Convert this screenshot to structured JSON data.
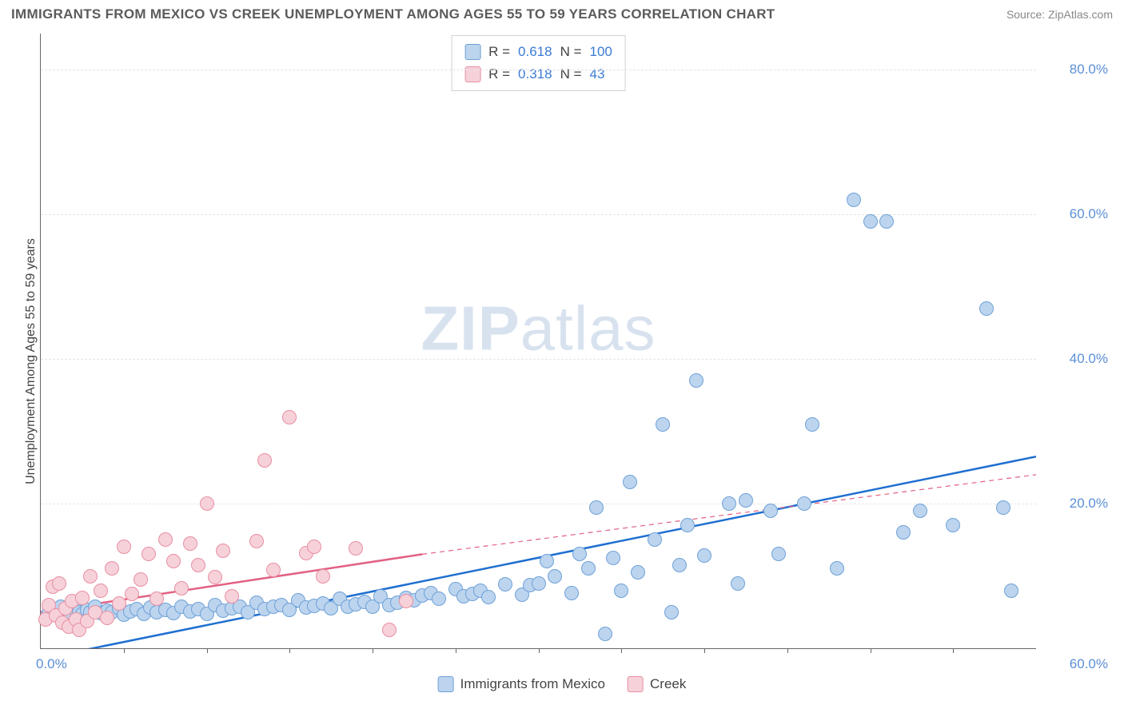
{
  "title": "IMMIGRANTS FROM MEXICO VS CREEK UNEMPLOYMENT AMONG AGES 55 TO 59 YEARS CORRELATION CHART",
  "source_label": "Source: ",
  "source_name": "ZipAtlas.com",
  "yaxis_label": "Unemployment Among Ages 55 to 59 years",
  "watermark_bold": "ZIP",
  "watermark_rest": "atlas",
  "plot": {
    "type": "scatter",
    "xlim": [
      0,
      60
    ],
    "ylim": [
      0,
      85
    ],
    "x_tick_label_min": "0.0%",
    "x_tick_label_max": "60.0%",
    "x_minor_ticks": [
      5,
      10,
      15,
      20,
      25,
      30,
      35,
      40,
      45,
      50,
      55
    ],
    "y_ticks": [
      {
        "v": 20,
        "label": "20.0%"
      },
      {
        "v": 40,
        "label": "40.0%"
      },
      {
        "v": 60,
        "label": "60.0%"
      },
      {
        "v": 80,
        "label": "80.0%"
      }
    ],
    "grid_color": "#e5e5e5",
    "background": "#ffffff",
    "marker_radius": 9,
    "marker_border_width": 1.2
  },
  "series": [
    {
      "name": "Immigrants from Mexico",
      "fill": "#bcd4ee",
      "stroke": "#6fa1d8",
      "line_color": "#1f6fd1",
      "line_width": 2.5,
      "R_label": "R = ",
      "R": "0.618",
      "N_label": "   N = ",
      "N": "100",
      "trend": {
        "x1": 1,
        "y1": -1,
        "x2": 60,
        "y2": 26.5
      },
      "points": [
        [
          0.5,
          5
        ],
        [
          0.8,
          5.2
        ],
        [
          1,
          4.5
        ],
        [
          1.2,
          5.8
        ],
        [
          1.5,
          5
        ],
        [
          1.8,
          4.8
        ],
        [
          2,
          5.5
        ],
        [
          2.3,
          5
        ],
        [
          2.5,
          4.7
        ],
        [
          2.8,
          5.3
        ],
        [
          3,
          5
        ],
        [
          3.3,
          5.8
        ],
        [
          3.6,
          4.9
        ],
        [
          4,
          5.2
        ],
        [
          4.3,
          5
        ],
        [
          4.7,
          5.5
        ],
        [
          5,
          4.6
        ],
        [
          5.4,
          5.1
        ],
        [
          5.8,
          5.4
        ],
        [
          6.2,
          4.8
        ],
        [
          6.6,
          5.6
        ],
        [
          7,
          5
        ],
        [
          7.5,
          5.3
        ],
        [
          8,
          4.9
        ],
        [
          8.5,
          5.7
        ],
        [
          9,
          5.1
        ],
        [
          9.5,
          5.4
        ],
        [
          10,
          4.7
        ],
        [
          10.5,
          6
        ],
        [
          11,
          5.2
        ],
        [
          11.5,
          5.5
        ],
        [
          12,
          5.8
        ],
        [
          12.5,
          5
        ],
        [
          13,
          6.3
        ],
        [
          13.5,
          5.4
        ],
        [
          14,
          5.7
        ],
        [
          14.5,
          6
        ],
        [
          15,
          5.3
        ],
        [
          15.5,
          6.6
        ],
        [
          16,
          5.6
        ],
        [
          16.5,
          5.9
        ],
        [
          17,
          6.2
        ],
        [
          17.5,
          5.5
        ],
        [
          18,
          6.8
        ],
        [
          18.5,
          5.8
        ],
        [
          19,
          6.1
        ],
        [
          19.5,
          6.4
        ],
        [
          20,
          5.7
        ],
        [
          20.5,
          7.2
        ],
        [
          21,
          6
        ],
        [
          21.5,
          6.3
        ],
        [
          22,
          7
        ],
        [
          22.5,
          6.6
        ],
        [
          23,
          7.3
        ],
        [
          23.5,
          7.6
        ],
        [
          24,
          6.9
        ],
        [
          25,
          8.2
        ],
        [
          25.5,
          7.2
        ],
        [
          26,
          7.5
        ],
        [
          26.5,
          8
        ],
        [
          27,
          7.1
        ],
        [
          28,
          8.8
        ],
        [
          29,
          7.4
        ],
        [
          29.5,
          8.7
        ],
        [
          30,
          9
        ],
        [
          30.5,
          12
        ],
        [
          31,
          10
        ],
        [
          32,
          7.6
        ],
        [
          32.5,
          13
        ],
        [
          33,
          11
        ],
        [
          33.5,
          19.5
        ],
        [
          34,
          2
        ],
        [
          34.5,
          12.5
        ],
        [
          35,
          8
        ],
        [
          35.5,
          23
        ],
        [
          36,
          10.5
        ],
        [
          37,
          15
        ],
        [
          37.5,
          31
        ],
        [
          38,
          5
        ],
        [
          38.5,
          11.5
        ],
        [
          39,
          17
        ],
        [
          39.5,
          37
        ],
        [
          40,
          12.8
        ],
        [
          41.5,
          20
        ],
        [
          42,
          9
        ],
        [
          42.5,
          20.5
        ],
        [
          44,
          19
        ],
        [
          44.5,
          13
        ],
        [
          46,
          20
        ],
        [
          46.5,
          31
        ],
        [
          48,
          11
        ],
        [
          49,
          62
        ],
        [
          50,
          59
        ],
        [
          51,
          59
        ],
        [
          52,
          16
        ],
        [
          53,
          19
        ],
        [
          55,
          17
        ],
        [
          57,
          47
        ],
        [
          58,
          19.5
        ],
        [
          58.5,
          8
        ]
      ]
    },
    {
      "name": "Creek",
      "fill": "#f6d1d9",
      "stroke": "#e88fa3",
      "line_color": "#e26183",
      "line_width": 2.5,
      "R_label": "R = ",
      "R": "0.318",
      "N_label": "   N = ",
      "N": "43",
      "trend_solid": {
        "x1": 0,
        "y1": 5,
        "x2": 23,
        "y2": 13
      },
      "trend_dash": {
        "x1": 23,
        "y1": 13,
        "x2": 60,
        "y2": 24
      },
      "points": [
        [
          0.3,
          4
        ],
        [
          0.5,
          6
        ],
        [
          0.7,
          8.5
        ],
        [
          0.9,
          4.5
        ],
        [
          1.1,
          9
        ],
        [
          1.3,
          3.5
        ],
        [
          1.5,
          5.5
        ],
        [
          1.7,
          3
        ],
        [
          1.9,
          6.5
        ],
        [
          2.1,
          4
        ],
        [
          2.3,
          2.5
        ],
        [
          2.5,
          7
        ],
        [
          2.8,
          3.8
        ],
        [
          3,
          10
        ],
        [
          3.3,
          5
        ],
        [
          3.6,
          8
        ],
        [
          4,
          4.2
        ],
        [
          4.3,
          11
        ],
        [
          4.7,
          6.2
        ],
        [
          5,
          14
        ],
        [
          5.5,
          7.5
        ],
        [
          6,
          9.5
        ],
        [
          6.5,
          13
        ],
        [
          7,
          6.8
        ],
        [
          7.5,
          15
        ],
        [
          8,
          12
        ],
        [
          8.5,
          8.3
        ],
        [
          9,
          14.5
        ],
        [
          9.5,
          11.5
        ],
        [
          10,
          20
        ],
        [
          10.5,
          9.8
        ],
        [
          11,
          13.5
        ],
        [
          11.5,
          7.2
        ],
        [
          13,
          14.8
        ],
        [
          13.5,
          26
        ],
        [
          14,
          10.8
        ],
        [
          15,
          32
        ],
        [
          16,
          13.2
        ],
        [
          16.5,
          14
        ],
        [
          17,
          10
        ],
        [
          19,
          13.8
        ],
        [
          21,
          2.5
        ],
        [
          22,
          6.5
        ]
      ]
    }
  ]
}
